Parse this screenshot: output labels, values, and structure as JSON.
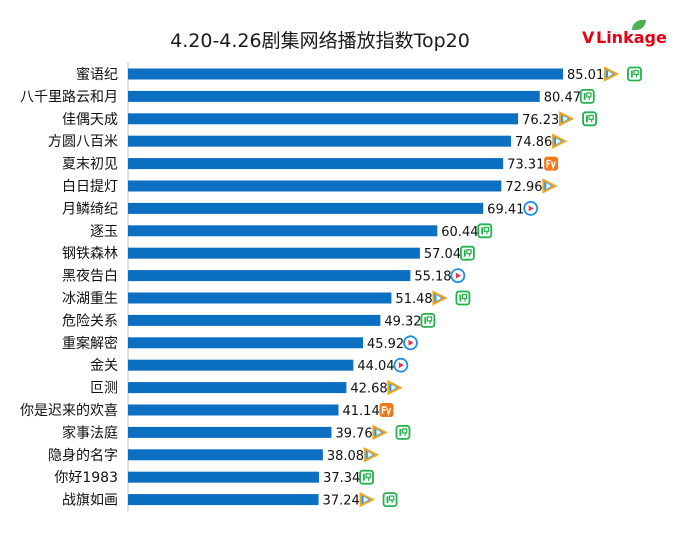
{
  "title": "4.20-4.26剧集网络播放指数Top20",
  "logo": {
    "v": "V",
    "rest": "Linkage"
  },
  "colors": {
    "bar": "#0b6fc2",
    "text": "#111111"
  },
  "chart_data": {
    "type": "bar",
    "orientation": "horizontal",
    "title": "4.20-4.26剧集网络播放指数Top20",
    "categories": [
      "蜜语纪",
      "八千里路云和月",
      "佳偶天成",
      "方圆八百米",
      "夏末初见",
      "白日提灯",
      "月鳞绮纪",
      "逐玉",
      "钢铁森林",
      "黑夜告白",
      "冰湖重生",
      "危险关系",
      "重案解密",
      "金关",
      "叵测",
      "你是迟来的欢喜",
      "家事法庭",
      "隐身的名字",
      "你好1983",
      "战旗如画"
    ],
    "values": [
      85.01,
      80.47,
      76.23,
      74.86,
      73.31,
      72.96,
      69.41,
      60.44,
      57.04,
      55.18,
      51.48,
      49.32,
      45.92,
      44.04,
      42.68,
      41.14,
      39.76,
      38.08,
      37.34,
      37.24
    ],
    "platforms": [
      [
        "tencent-video-icon",
        "iqiyi-icon"
      ],
      [
        "iqiyi-icon"
      ],
      [
        "tencent-video-icon",
        "iqiyi-icon"
      ],
      [
        "tencent-video-icon"
      ],
      [
        "mango-tv-icon"
      ],
      [
        "tencent-video-icon"
      ],
      [
        "youku-icon"
      ],
      [
        "iqiyi-icon"
      ],
      [
        "iqiyi-icon"
      ],
      [
        "youku-icon"
      ],
      [
        "tencent-video-icon",
        "iqiyi-icon"
      ],
      [
        "iqiyi-icon"
      ],
      [
        "youku-icon"
      ],
      [
        "youku-icon"
      ],
      [
        "tencent-video-icon"
      ],
      [
        "mango-tv-icon"
      ],
      [
        "tencent-video-icon",
        "iqiyi-icon"
      ],
      [
        "tencent-video-icon"
      ],
      [
        "iqiyi-icon"
      ],
      [
        "tencent-video-icon",
        "iqiyi-icon"
      ]
    ],
    "decimals": 2
  }
}
